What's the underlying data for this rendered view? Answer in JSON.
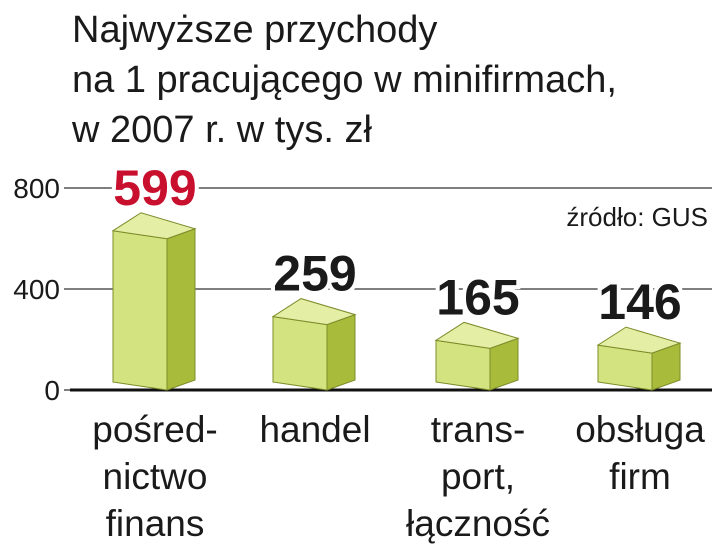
{
  "chart_data": {
    "type": "bar3d",
    "title": [
      "Najwyższe przychody",
      "na 1 pracującego w minifirmach,",
      "w 2007 r. w tys. zł"
    ],
    "source": "źródło: GUS",
    "categories": [
      [
        "pośred-",
        "nictwo",
        "finans"
      ],
      [
        "handel"
      ],
      [
        "trans-",
        "port,",
        "łączność"
      ],
      [
        "obsługa",
        "firm"
      ]
    ],
    "values": [
      599,
      259,
      165,
      146
    ],
    "value_label_colors": [
      "#c8102e",
      "#1a1a1a",
      "#1a1a1a",
      "#1a1a1a"
    ],
    "colors": {
      "left": "#d3e37f",
      "right": "#a8bb3a",
      "top": "#e4eea4"
    },
    "ylim": [
      0,
      800
    ],
    "yticks": [
      0,
      400,
      800
    ],
    "grid": true
  }
}
